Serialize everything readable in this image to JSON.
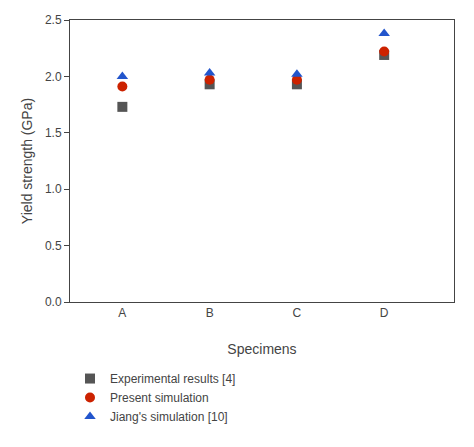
{
  "chart_data": {
    "type": "scatter",
    "categories": [
      "A",
      "B",
      "C",
      "D"
    ],
    "series": [
      {
        "name": "Experimental results [4]",
        "color": "#555555",
        "marker": "square",
        "values": [
          1.73,
          1.93,
          1.93,
          2.19
        ]
      },
      {
        "name": "Present simulation",
        "color": "#cc2200",
        "marker": "circle",
        "values": [
          1.91,
          1.97,
          1.97,
          2.22
        ]
      },
      {
        "name": "Jiang's simulation [10]",
        "color": "#2255cc",
        "marker": "triangle-up",
        "values": [
          2.0,
          2.03,
          2.02,
          2.38
        ]
      }
    ],
    "x_label": "Specimens",
    "y_label": "Yield strength (GPa)",
    "ylim": [
      0.0,
      2.5
    ],
    "yticks": [
      {
        "value": 0.0,
        "label": "0.0"
      },
      0.5,
      {
        "value": 1.0,
        "label": "1.0"
      },
      1.5,
      {
        "value": 2.0,
        "label": "2.0"
      },
      2.5
    ],
    "grid": false,
    "legend": "bottom"
  }
}
